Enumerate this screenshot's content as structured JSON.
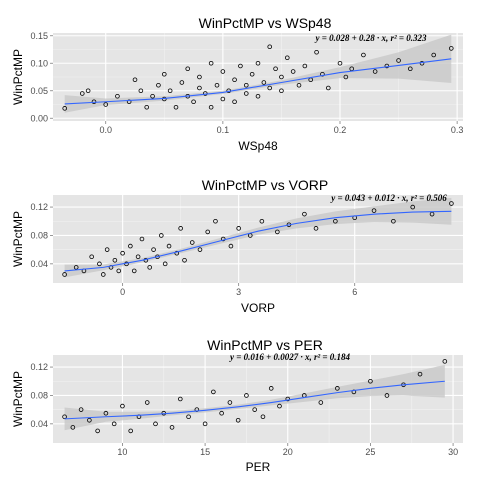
{
  "style": {
    "panel_bg": "#e5e5e5",
    "grid_color": "#ffffff",
    "line_color": "#3366ff",
    "band_color": "#c8c8c8",
    "point_color": "#000000"
  },
  "chart_data": [
    {
      "type": "scatter",
      "title": "WinPctMP vs WSp48",
      "xlabel": "WSp48",
      "ylabel": "WinPctMP",
      "xlim": [
        -0.045,
        0.305
      ],
      "ylim": [
        -0.005,
        0.155
      ],
      "x_ticks": [
        0.0,
        0.1,
        0.2,
        0.3
      ],
      "x_tick_labels": [
        "0.0",
        "0.1",
        "0.2",
        "0.3"
      ],
      "y_ticks": [
        0.0,
        0.05,
        0.1,
        0.15
      ],
      "y_tick_labels": [
        "0.00",
        "0.05",
        "0.10",
        "0.15"
      ],
      "equation": "y = 0.028 + 0.28 · x,  r² = 0.323",
      "smooth": {
        "x": [
          -0.035,
          0.0,
          0.05,
          0.1,
          0.15,
          0.2,
          0.25,
          0.295
        ],
        "y": [
          0.026,
          0.03,
          0.036,
          0.047,
          0.065,
          0.083,
          0.096,
          0.108
        ],
        "lower": [
          0.01,
          0.024,
          0.032,
          0.044,
          0.061,
          0.073,
          0.072,
          0.064
        ],
        "upper": [
          0.042,
          0.036,
          0.04,
          0.05,
          0.069,
          0.093,
          0.12,
          0.152
        ]
      },
      "points": [
        [
          -0.035,
          0.018
        ],
        [
          -0.02,
          0.045
        ],
        [
          -0.01,
          0.03
        ],
        [
          -0.015,
          0.05
        ],
        [
          0.0,
          0.025
        ],
        [
          0.01,
          0.04
        ],
        [
          0.02,
          0.03
        ],
        [
          0.025,
          0.07
        ],
        [
          0.03,
          0.05
        ],
        [
          0.035,
          0.02
        ],
        [
          0.04,
          0.04
        ],
        [
          0.045,
          0.06
        ],
        [
          0.05,
          0.035
        ],
        [
          0.05,
          0.08
        ],
        [
          0.055,
          0.05
        ],
        [
          0.06,
          0.02
        ],
        [
          0.065,
          0.065
        ],
        [
          0.07,
          0.04
        ],
        [
          0.07,
          0.09
        ],
        [
          0.075,
          0.03
        ],
        [
          0.08,
          0.055
        ],
        [
          0.08,
          0.075
        ],
        [
          0.085,
          0.045
        ],
        [
          0.09,
          0.02
        ],
        [
          0.09,
          0.1
        ],
        [
          0.095,
          0.06
        ],
        [
          0.1,
          0.035
        ],
        [
          0.1,
          0.085
        ],
        [
          0.105,
          0.05
        ],
        [
          0.11,
          0.07
        ],
        [
          0.11,
          0.03
        ],
        [
          0.115,
          0.095
        ],
        [
          0.12,
          0.045
        ],
        [
          0.12,
          0.06
        ],
        [
          0.125,
          0.08
        ],
        [
          0.13,
          0.04
        ],
        [
          0.13,
          0.1
        ],
        [
          0.135,
          0.065
        ],
        [
          0.14,
          0.055
        ],
        [
          0.14,
          0.13
        ],
        [
          0.145,
          0.09
        ],
        [
          0.15,
          0.075
        ],
        [
          0.15,
          0.05
        ],
        [
          0.155,
          0.11
        ],
        [
          0.16,
          0.085
        ],
        [
          0.165,
          0.06
        ],
        [
          0.17,
          0.095
        ],
        [
          0.175,
          0.07
        ],
        [
          0.18,
          0.12
        ],
        [
          0.185,
          0.08
        ],
        [
          0.19,
          0.055
        ],
        [
          0.2,
          0.1
        ],
        [
          0.205,
          0.075
        ],
        [
          0.21,
          0.09
        ],
        [
          0.22,
          0.115
        ],
        [
          0.23,
          0.085
        ],
        [
          0.24,
          0.095
        ],
        [
          0.25,
          0.105
        ],
        [
          0.26,
          0.09
        ],
        [
          0.27,
          0.1
        ],
        [
          0.28,
          0.115
        ],
        [
          0.295,
          0.127
        ]
      ]
    },
    {
      "type": "scatter",
      "title": "WinPctMP vs VORP",
      "xlabel": "VORP",
      "ylabel": "WinPctMP",
      "xlim": [
        -1.8,
        8.8
      ],
      "ylim": [
        0.013,
        0.137
      ],
      "x_ticks": [
        0,
        3,
        6
      ],
      "x_tick_labels": [
        "0",
        "3",
        "6"
      ],
      "y_ticks": [
        0.04,
        0.08,
        0.12
      ],
      "y_tick_labels": [
        "0.04",
        "0.08",
        "0.12"
      ],
      "equation": "y = 0.043 + 0.012 · x,  r² = 0.506",
      "smooth": {
        "x": [
          -1.5,
          -0.5,
          0.5,
          1.5,
          2.5,
          3.5,
          4.5,
          5.5,
          6.5,
          7.5,
          8.5
        ],
        "y": [
          0.03,
          0.035,
          0.045,
          0.058,
          0.072,
          0.086,
          0.097,
          0.105,
          0.11,
          0.113,
          0.114
        ],
        "lower": [
          0.021,
          0.031,
          0.042,
          0.055,
          0.068,
          0.081,
          0.09,
          0.096,
          0.099,
          0.098,
          0.095
        ],
        "upper": [
          0.039,
          0.039,
          0.048,
          0.061,
          0.076,
          0.091,
          0.104,
          0.114,
          0.121,
          0.128,
          0.133
        ]
      },
      "points": [
        [
          -1.5,
          0.025
        ],
        [
          -1.2,
          0.035
        ],
        [
          -1.0,
          0.03
        ],
        [
          -0.8,
          0.05
        ],
        [
          -0.6,
          0.04
        ],
        [
          -0.5,
          0.025
        ],
        [
          -0.4,
          0.06
        ],
        [
          -0.3,
          0.035
        ],
        [
          -0.2,
          0.045
        ],
        [
          -0.1,
          0.03
        ],
        [
          0.0,
          0.055
        ],
        [
          0.1,
          0.04
        ],
        [
          0.2,
          0.065
        ],
        [
          0.3,
          0.03
        ],
        [
          0.4,
          0.05
        ],
        [
          0.5,
          0.075
        ],
        [
          0.6,
          0.045
        ],
        [
          0.7,
          0.035
        ],
        [
          0.8,
          0.06
        ],
        [
          0.9,
          0.05
        ],
        [
          1.0,
          0.08
        ],
        [
          1.1,
          0.04
        ],
        [
          1.2,
          0.065
        ],
        [
          1.4,
          0.055
        ],
        [
          1.5,
          0.09
        ],
        [
          1.6,
          0.045
        ],
        [
          1.8,
          0.07
        ],
        [
          2.0,
          0.06
        ],
        [
          2.2,
          0.085
        ],
        [
          2.4,
          0.1
        ],
        [
          2.6,
          0.075
        ],
        [
          2.8,
          0.065
        ],
        [
          3.0,
          0.09
        ],
        [
          3.3,
          0.08
        ],
        [
          3.6,
          0.1
        ],
        [
          4.0,
          0.085
        ],
        [
          4.3,
          0.095
        ],
        [
          4.7,
          0.11
        ],
        [
          5.0,
          0.09
        ],
        [
          5.5,
          0.1
        ],
        [
          6.0,
          0.105
        ],
        [
          6.5,
          0.115
        ],
        [
          7.0,
          0.1
        ],
        [
          7.5,
          0.12
        ],
        [
          8.0,
          0.11
        ],
        [
          8.5,
          0.125
        ]
      ]
    },
    {
      "type": "scatter",
      "title": "WinPctMP vs PER",
      "xlabel": "PER",
      "ylabel": "WinPctMP",
      "xlim": [
        5.8,
        30.6
      ],
      "ylim": [
        0.013,
        0.137
      ],
      "x_ticks": [
        10,
        15,
        20,
        25,
        30
      ],
      "x_tick_labels": [
        "10",
        "15",
        "20",
        "25",
        "30"
      ],
      "y_ticks": [
        0.04,
        0.08,
        0.12
      ],
      "y_tick_labels": [
        "0.04",
        "0.08",
        "0.12"
      ],
      "equation": "y = 0.016 + 0.0027 · x,  r² = 0.184",
      "smooth": {
        "x": [
          6.5,
          9,
          11,
          13,
          15,
          17,
          19,
          21,
          23,
          25,
          27,
          29.5
        ],
        "y": [
          0.047,
          0.05,
          0.052,
          0.055,
          0.059,
          0.064,
          0.07,
          0.077,
          0.084,
          0.09,
          0.095,
          0.1
        ],
        "lower": [
          0.031,
          0.043,
          0.047,
          0.052,
          0.056,
          0.061,
          0.066,
          0.071,
          0.076,
          0.079,
          0.08,
          0.077
        ],
        "upper": [
          0.063,
          0.057,
          0.057,
          0.058,
          0.062,
          0.067,
          0.074,
          0.083,
          0.092,
          0.101,
          0.11,
          0.123
        ]
      },
      "points": [
        [
          6.5,
          0.05
        ],
        [
          7,
          0.035
        ],
        [
          7.5,
          0.06
        ],
        [
          8,
          0.045
        ],
        [
          8.5,
          0.03
        ],
        [
          9,
          0.055
        ],
        [
          9.5,
          0.04
        ],
        [
          10,
          0.065
        ],
        [
          10.5,
          0.03
        ],
        [
          11,
          0.05
        ],
        [
          11.5,
          0.07
        ],
        [
          12,
          0.04
        ],
        [
          12.5,
          0.055
        ],
        [
          13,
          0.035
        ],
        [
          13.5,
          0.075
        ],
        [
          14,
          0.05
        ],
        [
          14.5,
          0.06
        ],
        [
          15,
          0.04
        ],
        [
          15.5,
          0.085
        ],
        [
          16,
          0.055
        ],
        [
          16.5,
          0.07
        ],
        [
          17,
          0.045
        ],
        [
          17.5,
          0.08
        ],
        [
          18,
          0.06
        ],
        [
          18.5,
          0.05
        ],
        [
          19,
          0.09
        ],
        [
          19.5,
          0.065
        ],
        [
          20,
          0.075
        ],
        [
          21,
          0.08
        ],
        [
          22,
          0.07
        ],
        [
          23,
          0.09
        ],
        [
          24,
          0.085
        ],
        [
          25,
          0.1
        ],
        [
          26,
          0.08
        ],
        [
          27,
          0.095
        ],
        [
          28,
          0.11
        ],
        [
          29.5,
          0.128
        ]
      ]
    }
  ]
}
